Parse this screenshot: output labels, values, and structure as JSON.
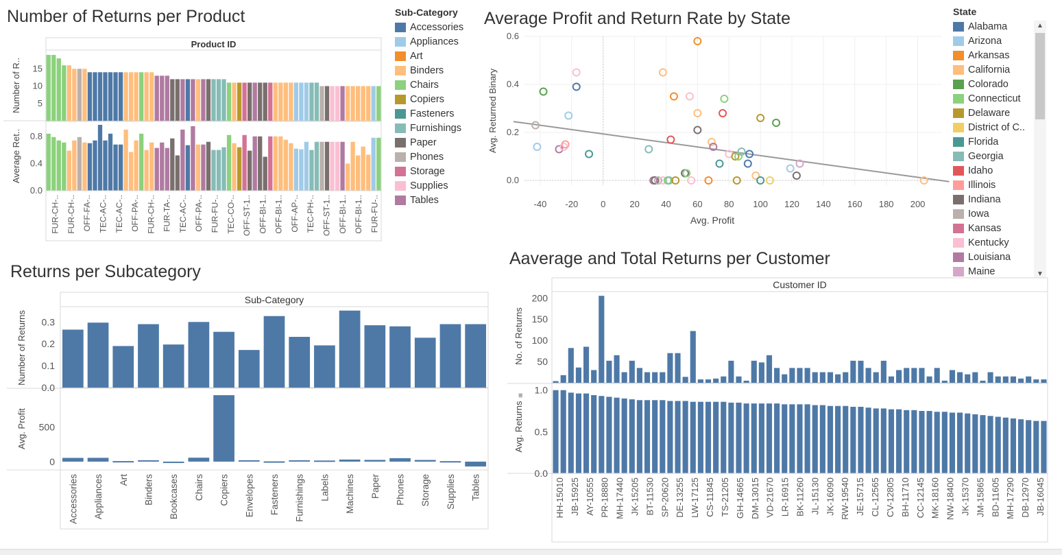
{
  "titles": {
    "product": "Number of Returns per Product",
    "state": "Average Profit and Return Rate by State",
    "subcat": "Returns per Subcategory",
    "customer": "Aaverage and Total Returns per Customer"
  },
  "colors": {
    "Accessories": "#4e79a7",
    "Appliances": "#a0cbe8",
    "Art": "#f28e2b",
    "Binders": "#ffbe7d",
    "Chairs": "#8cd17d",
    "Copiers": "#b6992d",
    "Fasteners": "#499894",
    "Furnishings": "#86bcb6",
    "Paper": "#79706e",
    "Phones": "#bab0ac",
    "Storage": "#d37295",
    "Supplies": "#fabfd2",
    "Tables": "#b07aa1",
    "bar": "#4e79a7",
    "trend": "#999999"
  },
  "subcat_legend": {
    "title": "Sub-Category",
    "items": [
      "Accessories",
      "Appliances",
      "Art",
      "Binders",
      "Chairs",
      "Copiers",
      "Fasteners",
      "Furnishings",
      "Paper",
      "Phones",
      "Storage",
      "Supplies",
      "Tables"
    ]
  },
  "state_legend": {
    "title": "State",
    "items": [
      {
        "name": "Alabama",
        "color": "#4e79a7"
      },
      {
        "name": "Arizona",
        "color": "#a0cbe8"
      },
      {
        "name": "Arkansas",
        "color": "#f28e2b"
      },
      {
        "name": "California",
        "color": "#ffbe7d"
      },
      {
        "name": "Colorado",
        "color": "#59a14f"
      },
      {
        "name": "Connecticut",
        "color": "#8cd17d"
      },
      {
        "name": "Delaware",
        "color": "#b6992d"
      },
      {
        "name": "District of C..",
        "color": "#f1ce63"
      },
      {
        "name": "Florida",
        "color": "#499894"
      },
      {
        "name": "Georgia",
        "color": "#86bcb6"
      },
      {
        "name": "Idaho",
        "color": "#e15759"
      },
      {
        "name": "Illinois",
        "color": "#ff9d9a"
      },
      {
        "name": "Indiana",
        "color": "#79706e"
      },
      {
        "name": "Iowa",
        "color": "#bab0ac"
      },
      {
        "name": "Kansas",
        "color": "#d37295"
      },
      {
        "name": "Kentucky",
        "color": "#fabfd2"
      },
      {
        "name": "Louisiana",
        "color": "#b07aa1"
      },
      {
        "name": "Maine",
        "color": "#d4a6c8"
      }
    ]
  },
  "chart_data": [
    {
      "id": "product",
      "type": "bar",
      "column_header": "Product ID",
      "ylabel_top": "Number of R..",
      "ylabel_bottom": "Average Ret..",
      "top_ticks": [
        "15",
        "10",
        "5"
      ],
      "bottom_ticks": [
        "0.8",
        "0.4",
        "0.0"
      ],
      "top_ylim": [
        0,
        20
      ],
      "bottom_ylim": [
        0,
        1.0
      ],
      "x_labels": [
        "FUR-CH-..",
        "FUR-CH-..",
        "OFF-FA-..",
        "TEC-AC-..",
        "TEC-AC-..",
        "OFF-PA-..",
        "FUR-CH-..",
        "FUR-TA-..",
        "TEC-AC-..",
        "OFF-PA-..",
        "FUR-FU-..",
        "TEC-CO-..",
        "OFF-ST-1..",
        "OFF-BI-1..",
        "OFF-BI-1..",
        "OFF-AP-..",
        "TEC-PH-..",
        "OFF-ST-1..",
        "OFF-BI-1..",
        "OFF-BI-1..",
        "FUR-FU-.."
      ],
      "categories": [
        "Chairs",
        "Chairs",
        "Chairs",
        "Chairs",
        "Binders",
        "Binders",
        "Phones",
        "Binders",
        "Accessories",
        "Accessories",
        "Accessories",
        "Accessories",
        "Accessories",
        "Accessories",
        "Accessories",
        "Binders",
        "Binders",
        "Binders",
        "Chairs",
        "Binders",
        "Binders",
        "Tables",
        "Tables",
        "Tables",
        "Paper",
        "Paper",
        "Tables",
        "Accessories",
        "Tables",
        "Binders",
        "Tables",
        "Paper",
        "Furnishings",
        "Furnishings",
        "Furnishings",
        "Chairs",
        "Binders",
        "Copiers",
        "Storage",
        "Paper",
        "Tables",
        "Paper",
        "Paper",
        "Storage",
        "Binders",
        "Binders",
        "Binders",
        "Binders",
        "Appliances",
        "Appliances",
        "Appliances",
        "Furnishings",
        "Furnishings",
        "Phones",
        "Paper",
        "Supplies",
        "Supplies",
        "Tables",
        "Binders",
        "Binders",
        "Binders",
        "Binders",
        "Binders",
        "Appliances",
        "Chairs"
      ],
      "top_values": [
        19,
        19,
        18,
        16,
        16,
        15,
        15,
        15,
        14,
        14,
        14,
        14,
        14,
        14,
        14,
        14,
        14,
        14,
        14,
        14,
        14,
        13,
        13,
        13,
        12,
        12,
        12,
        12,
        12,
        12,
        12,
        12,
        12,
        12,
        12,
        11,
        11,
        11,
        11,
        11,
        11,
        11,
        11,
        11,
        11,
        11,
        11,
        11,
        11,
        11,
        11,
        11,
        11,
        10,
        10,
        10,
        10,
        10,
        10,
        10,
        10,
        10,
        10,
        10,
        10
      ],
      "bottom_values": [
        0.84,
        0.79,
        0.74,
        0.71,
        0.59,
        0.74,
        0.79,
        0.71,
        0.7,
        0.74,
        0.97,
        0.74,
        0.84,
        0.68,
        0.68,
        0.9,
        0.57,
        0.74,
        0.84,
        0.6,
        0.71,
        0.63,
        0.71,
        0.63,
        0.77,
        0.52,
        0.9,
        0.67,
        0.95,
        0.68,
        0.68,
        0.72,
        0.6,
        0.6,
        0.64,
        0.82,
        0.7,
        0.64,
        0.82,
        0.59,
        0.8,
        0.8,
        0.5,
        0.8,
        0.8,
        0.8,
        0.75,
        0.7,
        0.62,
        0.61,
        0.72,
        0.6,
        0.72,
        0.72,
        0.72,
        0.72,
        0.72,
        0.72,
        0.4,
        0.72,
        0.52,
        0.65,
        0.53,
        0.78,
        0.78
      ]
    },
    {
      "id": "state",
      "type": "scatter",
      "xlabel": "Avg. Profit",
      "ylabel": "Avg. Returned Binary",
      "xlim": [
        -50,
        215
      ],
      "ylim": [
        -0.02,
        0.6
      ],
      "x_ticks": [
        -40,
        -20,
        0,
        20,
        40,
        60,
        80,
        100,
        120,
        140,
        160,
        180,
        200
      ],
      "y_ticks": [
        "0.6",
        "0.4",
        "0.2",
        "0.0"
      ],
      "y_tick_values": [
        0.6,
        0.4,
        0.2,
        0.0
      ],
      "trend": {
        "x1": -57,
        "y1": 0.245,
        "x2": 220,
        "y2": -0.005
      },
      "points": [
        {
          "x": -43,
          "y": 0.23,
          "state": "Iowa"
        },
        {
          "x": -42,
          "y": 0.14,
          "state": "Arizona"
        },
        {
          "x": -38,
          "y": 0.37,
          "state": "Colorado"
        },
        {
          "x": -22,
          "y": 0.27,
          "state": "Arizona"
        },
        {
          "x": -17,
          "y": 0.39,
          "state": "Alabama"
        },
        {
          "x": -17,
          "y": 0.45,
          "state": "Supplies"
        },
        {
          "x": -28,
          "y": 0.13,
          "state": "Louisiana"
        },
        {
          "x": -25,
          "y": 0.14,
          "state": "Kentucky"
        },
        {
          "x": -24,
          "y": 0.15,
          "state": "Illinois"
        },
        {
          "x": -9,
          "y": 0.11,
          "state": "Florida"
        },
        {
          "x": 29,
          "y": 0.13,
          "state": "Georgia"
        },
        {
          "x": 38,
          "y": 0.45,
          "state": "California"
        },
        {
          "x": 43,
          "y": 0.17,
          "state": "Idaho"
        },
        {
          "x": 45,
          "y": 0.35,
          "state": "Arkansas"
        },
        {
          "x": 55,
          "y": 0.35,
          "state": "Kentucky"
        },
        {
          "x": 60,
          "y": 0.58,
          "state": "Arkansas"
        },
        {
          "x": 60,
          "y": 0.28,
          "state": "California"
        },
        {
          "x": 60,
          "y": 0.21,
          "state": "Indiana"
        },
        {
          "x": 69,
          "y": 0.16,
          "state": "California"
        },
        {
          "x": 70,
          "y": 0.14,
          "state": "Louisiana"
        },
        {
          "x": 74,
          "y": 0.07,
          "state": "Florida"
        },
        {
          "x": 76,
          "y": 0.28,
          "state": "Idaho"
        },
        {
          "x": 77,
          "y": 0.34,
          "state": "Connecticut"
        },
        {
          "x": 80,
          "y": 0.11,
          "state": "Kentucky"
        },
        {
          "x": 84,
          "y": 0.1,
          "state": "Delaware"
        },
        {
          "x": 86,
          "y": 0.1,
          "state": "Connecticut"
        },
        {
          "x": 88,
          "y": 0.12,
          "state": "Georgia"
        },
        {
          "x": 92,
          "y": 0.07,
          "state": "Alabama"
        },
        {
          "x": 93,
          "y": 0.11,
          "state": "Alabama"
        },
        {
          "x": 100,
          "y": 0.26,
          "state": "Delaware"
        },
        {
          "x": 110,
          "y": 0.24,
          "state": "Colorado"
        },
        {
          "x": 119,
          "y": 0.05,
          "state": "Arizona"
        },
        {
          "x": 123,
          "y": 0.02,
          "state": "Indiana"
        },
        {
          "x": 125,
          "y": 0.07,
          "state": "Maine"
        },
        {
          "x": 32,
          "y": 0.0,
          "state": "Louisiana"
        },
        {
          "x": 33,
          "y": 0.0,
          "state": "Indiana"
        },
        {
          "x": 35,
          "y": 0.0,
          "state": "Iowa"
        },
        {
          "x": 38,
          "y": 0.0,
          "state": "Kentucky"
        },
        {
          "x": 41,
          "y": 0.0,
          "state": "Connecticut"
        },
        {
          "x": 42,
          "y": 0.0,
          "state": "Georgia"
        },
        {
          "x": 46,
          "y": 0.0,
          "state": "Delaware"
        },
        {
          "x": 52,
          "y": 0.03,
          "state": "Indiana"
        },
        {
          "x": 53,
          "y": 0.03,
          "state": "Connecticut"
        },
        {
          "x": 56,
          "y": 0.0,
          "state": "Kentucky"
        },
        {
          "x": 67,
          "y": 0.0,
          "state": "Arkansas"
        },
        {
          "x": 85,
          "y": 0.0,
          "state": "Delaware"
        },
        {
          "x": 97,
          "y": 0.02,
          "state": "California"
        },
        {
          "x": 100,
          "y": 0.0,
          "state": "Florida"
        },
        {
          "x": 106,
          "y": 0.0,
          "state": "District of C.."
        },
        {
          "x": 204,
          "y": 0.0,
          "state": "California"
        }
      ]
    },
    {
      "id": "subcat",
      "type": "bar",
      "column_header": "Sub-Category",
      "ylabel_top": "Number of Returns",
      "ylabel_bottom": "Avg. Profit",
      "categories": [
        "Accessories",
        "Appliances",
        "Art",
        "Binders",
        "Bookcases",
        "Chairs",
        "Copiers",
        "Envelopes",
        "Fasteners",
        "Furnishings",
        "Labels",
        "Machines",
        "Paper",
        "Phones",
        "Storage",
        "Supplies",
        "Tables"
      ],
      "top_values": [
        0.265,
        0.297,
        0.19,
        0.29,
        0.197,
        0.3,
        0.255,
        0.172,
        0.327,
        0.232,
        0.193,
        0.352,
        0.285,
        0.28,
        0.228,
        0.29,
        0.29
      ],
      "bottom_values": [
        54,
        55,
        8,
        20,
        -15,
        57,
        960,
        20,
        4,
        20,
        16,
        30,
        25,
        50,
        24,
        7,
        -70
      ],
      "top_ticks": [
        "0.3",
        "0.2",
        "0.1",
        "0.0"
      ],
      "top_tick_values": [
        0.3,
        0.2,
        0.1,
        0.0
      ],
      "top_ylim": [
        0,
        0.37
      ],
      "bottom_ticks": [
        "500",
        "0"
      ],
      "bottom_tick_values": [
        500,
        0
      ],
      "bottom_ylim": [
        -120,
        1000
      ]
    },
    {
      "id": "customer",
      "type": "bar",
      "column_header": "Customer ID",
      "ylabel_top": "No. of Returns",
      "ylabel_bottom": "Avg. Returns",
      "top_ticks": [
        "200",
        "150",
        "100",
        "50"
      ],
      "top_tick_values": [
        200,
        150,
        100,
        50
      ],
      "top_ylim": [
        0,
        215
      ],
      "bottom_ticks": [
        "1.0",
        "0.5",
        "0.0"
      ],
      "bottom_tick_values": [
        1.0,
        0.5,
        0.0
      ],
      "bottom_ylim": [
        0,
        1.08
      ],
      "x_labels": [
        "HH-15010",
        "JB-15925",
        "AY-10555",
        "PR-18880",
        "MH-17440",
        "JK-15205",
        "BT-11530",
        "SP-20620",
        "DE-13255",
        "LW-17125",
        "CS-11845",
        "TS-21205",
        "GH-14665",
        "DM-13015",
        "VD-21670",
        "LR-16915",
        "BK-11260",
        "JL-15130",
        "JK-16090",
        "RW-19540",
        "JE-15715",
        "CL-12565",
        "CV-12805",
        "BH-11710",
        "CC-12145",
        "MK-18160",
        "NW-18400",
        "JK-15370",
        "JM-15865",
        "BD-11605",
        "MH-17290",
        "DB-12970",
        "JB-16045"
      ],
      "top_values": [
        4,
        18,
        82,
        36,
        85,
        30,
        205,
        52,
        65,
        25,
        52,
        35,
        25,
        25,
        25,
        70,
        70,
        14,
        122,
        8,
        8,
        10,
        15,
        52,
        15,
        5,
        52,
        48,
        65,
        35,
        20,
        35,
        35,
        35,
        25,
        25,
        25,
        20,
        25,
        52,
        52,
        35,
        25,
        52,
        15,
        30,
        35,
        35,
        35,
        15,
        35,
        5,
        30,
        25,
        20,
        25,
        5,
        25,
        15,
        15,
        15,
        10,
        15,
        8,
        8
      ],
      "bottom_values": [
        1.0,
        1.0,
        0.97,
        0.96,
        0.96,
        0.94,
        0.93,
        0.92,
        0.91,
        0.9,
        0.89,
        0.88,
        0.88,
        0.88,
        0.88,
        0.87,
        0.87,
        0.87,
        0.86,
        0.86,
        0.86,
        0.86,
        0.86,
        0.85,
        0.85,
        0.84,
        0.84,
        0.84,
        0.84,
        0.84,
        0.83,
        0.83,
        0.83,
        0.83,
        0.82,
        0.82,
        0.81,
        0.81,
        0.81,
        0.8,
        0.8,
        0.79,
        0.78,
        0.78,
        0.77,
        0.77,
        0.76,
        0.76,
        0.75,
        0.75,
        0.74,
        0.74,
        0.73,
        0.73,
        0.72,
        0.71,
        0.7,
        0.69,
        0.68,
        0.67,
        0.66,
        0.65,
        0.64,
        0.63,
        0.63
      ]
    }
  ]
}
